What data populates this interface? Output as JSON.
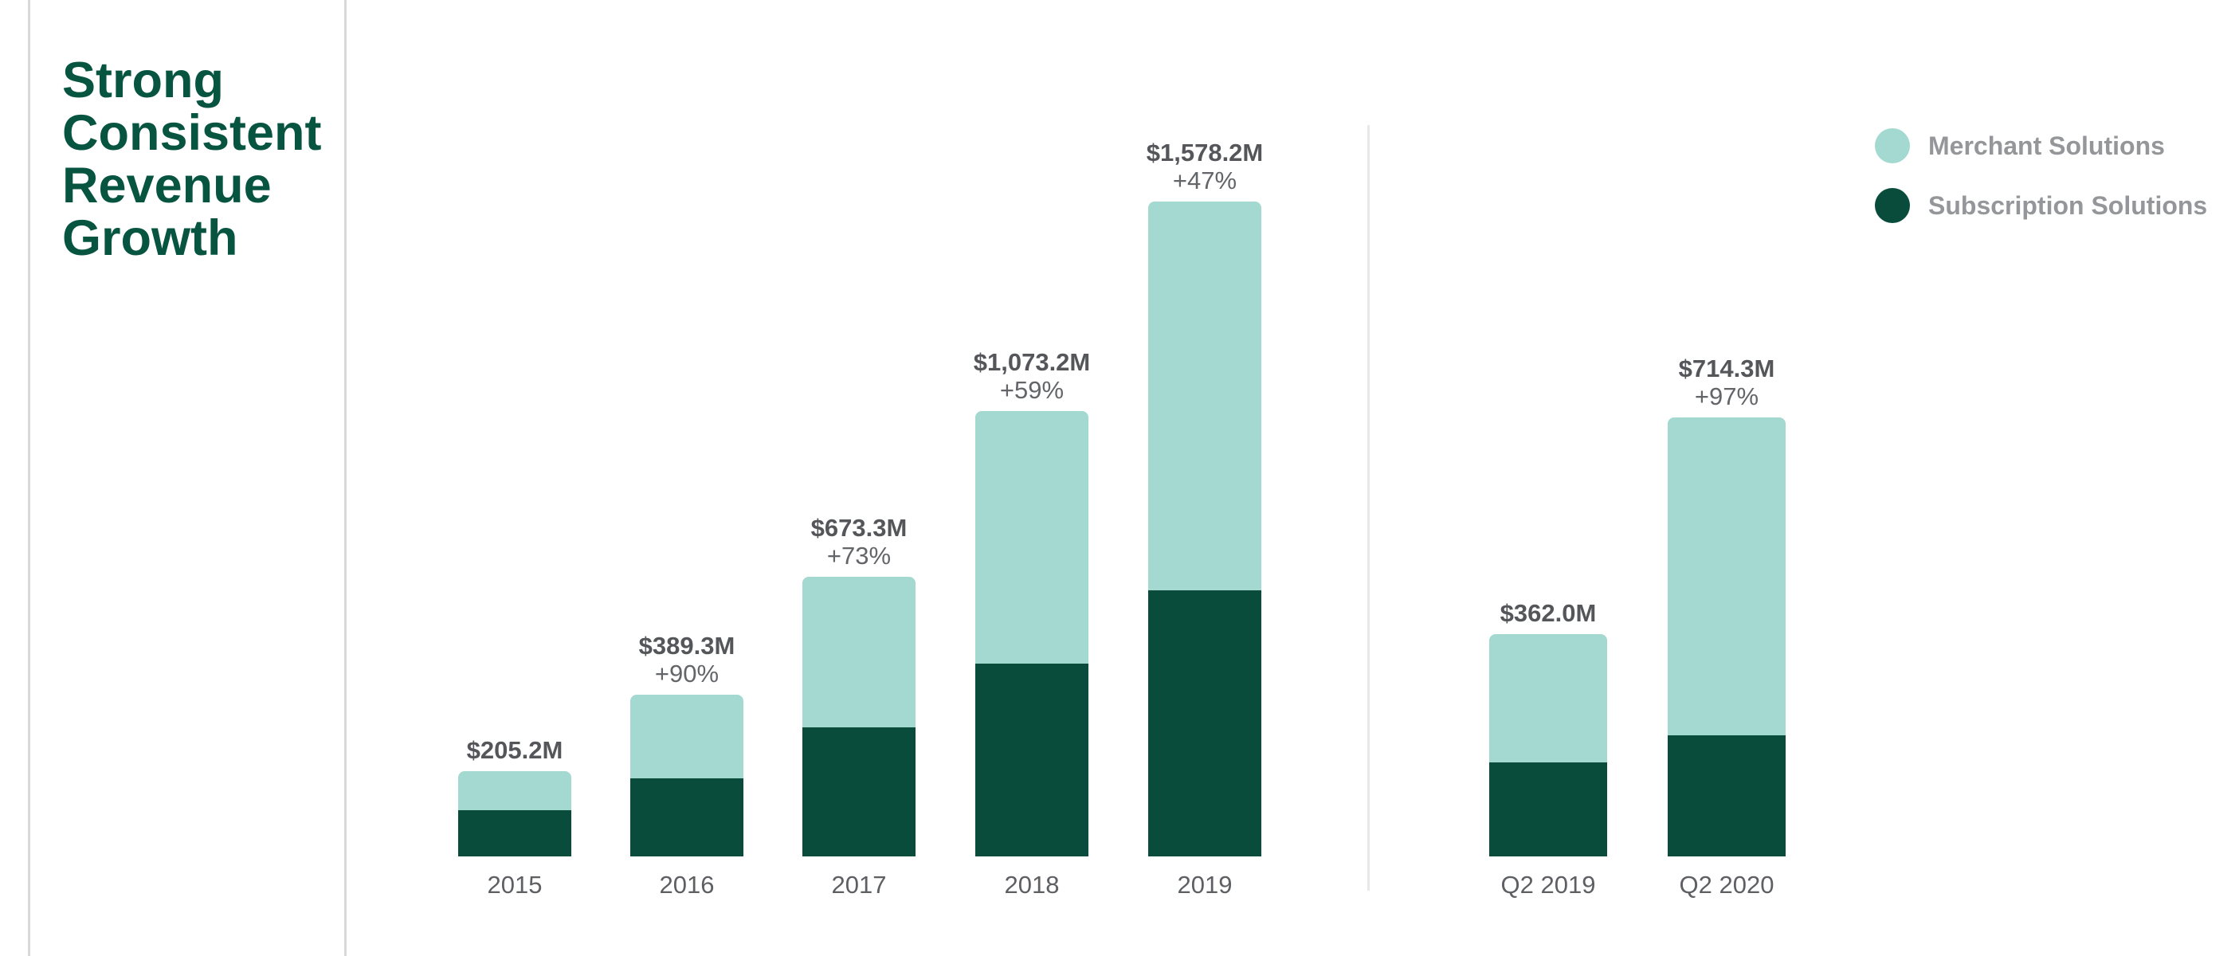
{
  "slide": {
    "title_lines": [
      "Strong",
      "Consistent",
      "Revenue",
      "Growth"
    ]
  },
  "legend": {
    "items": [
      {
        "label": "Merchant Solutions",
        "color": "#a3d9d0"
      },
      {
        "label": "Subscription Solutions",
        "color": "#094c3b"
      }
    ]
  },
  "colors": {
    "title_green": "#075440",
    "merchant_teal": "#a3d9d0",
    "subscription_green": "#094c3b",
    "value_label_gray": "#54565a",
    "secondary_label_gray": "#636569",
    "legend_text_gray": "#949699",
    "rule_gray": "#d8d9da",
    "separator_gray": "#e6e8e9"
  },
  "chart_data": {
    "type": "bar",
    "stacked": true,
    "units": "USD millions",
    "value_axis": "hidden",
    "grid": "off",
    "legend_position": "top-right",
    "series_names": [
      "Merchant Solutions",
      "Subscription Solutions"
    ],
    "groups": [
      {
        "name": "annual",
        "categories": [
          "2015",
          "2016",
          "2017",
          "2018",
          "2019"
        ]
      },
      {
        "name": "quarterly",
        "categories": [
          "Q2 2019",
          "Q2 2020"
        ]
      }
    ],
    "bars": [
      {
        "category": "2015",
        "total": 205.2,
        "total_label": "$205.2M",
        "growth_label": "",
        "merchant": 93.2,
        "subscription": 112.0
      },
      {
        "category": "2016",
        "total": 389.3,
        "total_label": "$389.3M",
        "growth_label": "+90%",
        "merchant": 200.3,
        "subscription": 189.0
      },
      {
        "category": "2017",
        "total": 673.3,
        "total_label": "$673.3M",
        "growth_label": "+73%",
        "merchant": 363.3,
        "subscription": 310.0
      },
      {
        "category": "2018",
        "total": 1073.2,
        "total_label": "$1,073.2M",
        "growth_label": "+59%",
        "merchant": 608.2,
        "subscription": 465.0
      },
      {
        "category": "2019",
        "total": 1578.2,
        "total_label": "$1,578.2M",
        "growth_label": "+47%",
        "merchant": 936.2,
        "subscription": 642.0
      },
      {
        "category": "Q2 2019",
        "total": 362.0,
        "total_label": "$362.0M",
        "growth_label": "",
        "merchant": 209.0,
        "subscription": 153.0
      },
      {
        "category": "Q2 2020",
        "total": 714.3,
        "total_label": "$714.3M",
        "growth_label": "+97%",
        "merchant": 517.3,
        "subscription": 197.0
      }
    ]
  }
}
